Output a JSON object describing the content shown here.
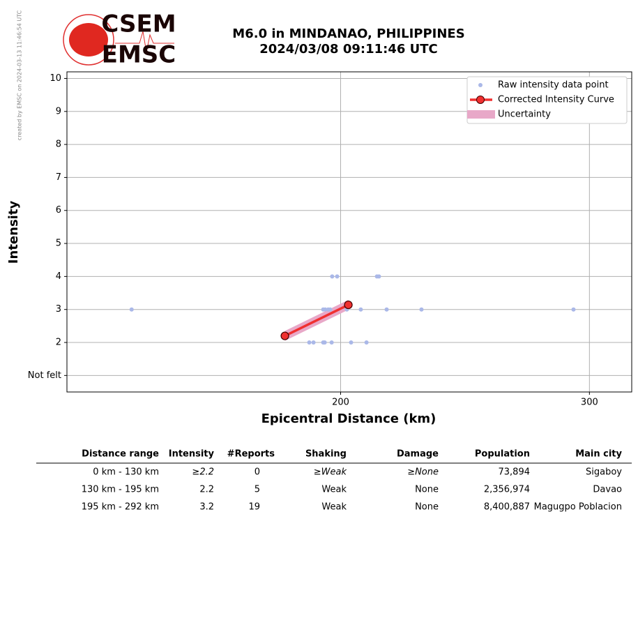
{
  "chart_data": {
    "type": "scatter",
    "title": "M6.0 in MINDANAO, PHILIPPINES",
    "subtitle": "2024/03/08 09:11:46 UTC",
    "credit": "created by EMSC on 2024-03-13 11:46:54 UTC",
    "logo_top": "CSEM",
    "logo_bottom": "EMSC",
    "x_label": "Epicentral Distance (km)",
    "y_label": "Intensity",
    "xlim": [
      90,
      317
    ],
    "xticks": [
      200,
      300
    ],
    "ylim": [
      0.5,
      10.2
    ],
    "yticks": [
      {
        "value": 1,
        "label": "Not felt"
      },
      2,
      3,
      4,
      5,
      6,
      7,
      8,
      9,
      10
    ],
    "grid": true,
    "legend": "upper right",
    "series": [
      {
        "name": "Raw intensity data point",
        "color": "#aab8e8",
        "x": [
          116,
          196.6,
          198.6,
          214.6,
          215.4,
          193,
          193.8,
          195,
          195.8,
          202.5,
          208.1,
          218.5,
          232.5,
          293.6,
          187.4,
          189.1,
          193,
          193.6,
          196.4,
          204.2,
          210.4
        ],
        "values": [
          3,
          4,
          4,
          4,
          4,
          3,
          3,
          3,
          3,
          3,
          3,
          3,
          3,
          3,
          2,
          2,
          2,
          2,
          2,
          2,
          2
        ]
      },
      {
        "name": "Corrected Intensity Curve",
        "color": "#f03030",
        "x": [
          177.6,
          203.1
        ],
        "values": [
          2.2,
          3.14
        ]
      },
      {
        "name": "Uncertainty",
        "color": "#e8a8c8",
        "x": [
          177.6,
          203.1
        ],
        "lower": [
          2.05,
          2.99
        ],
        "upper": [
          2.35,
          3.29
        ]
      }
    ]
  },
  "table": {
    "headers": [
      "Distance range",
      "Intensity",
      "#Reports",
      "Shaking",
      "Damage",
      "Population",
      "Main city"
    ],
    "rows": [
      [
        "0 km -  130 km",
        "≥2.2",
        "0",
        "≥Weak",
        "≥None",
        "73,894",
        "Sigaboy"
      ],
      [
        "130 km -  195 km",
        "2.2",
        "5",
        "Weak",
        "None",
        "2,356,974",
        "Davao"
      ],
      [
        "195 km -  292 km",
        "3.2",
        "19",
        "Weak",
        "None",
        "8,400,887",
        "Magugpo Poblacion"
      ]
    ]
  }
}
